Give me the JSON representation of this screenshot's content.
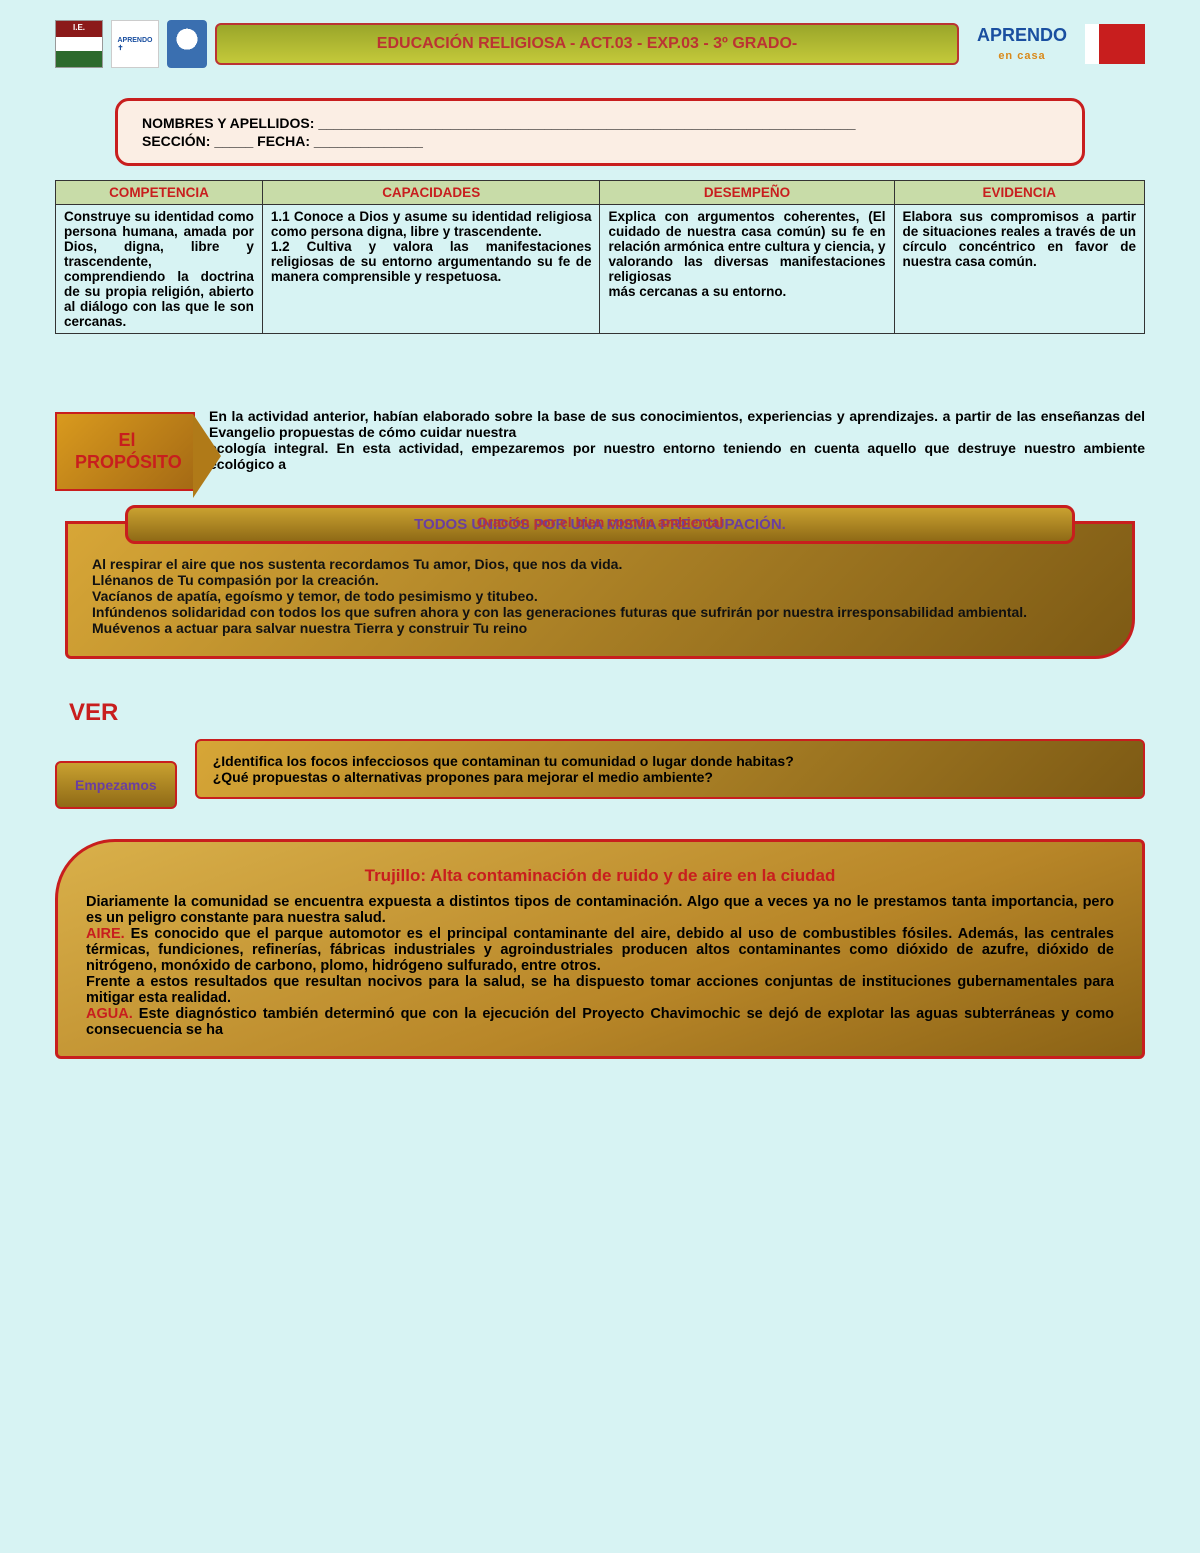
{
  "header": {
    "title": "EDUCACIÓN RELIGIOSA - ACT.03 - EXP.03 - 3º GRADO-",
    "aprendo_big": "APRENDO",
    "aprendo_sub": "en casa"
  },
  "name_box": {
    "line1": "NOMBRES Y APELLIDOS: _____________________________________________________________________",
    "line2": "SECCIÓN: _____        FECHA: ______________"
  },
  "table": {
    "headers": [
      "COMPETENCIA",
      "CAPACIDADES",
      "DESEMPEÑO",
      "EVIDENCIA"
    ],
    "row": {
      "competencia": "Construye su identidad como persona humana, amada por Dios, digna, libre y trascendente, comprendiendo la doctrina de su propia religión, abierto al diálogo con las que le son cercanas.",
      "capacidades": "1.1 Conoce a Dios y asume su identidad religiosa como persona digna, libre y trascendente.\n1.2 Cultiva y valora las manifestaciones religiosas de su entorno argumentando su fe de manera comprensible y respetuosa.",
      "desempeno": "Explica con argumentos coherentes, (El cuidado de nuestra casa común) su fe en relación armónica entre cultura y ciencia, y valorando las diversas manifestaciones religiosas\nmás cercanas a su entorno.",
      "evidencia": "Elabora sus compromisos a partir de situaciones reales a través de un círculo concéntrico en favor de nuestra casa común."
    },
    "col_widths": [
      "19%",
      "31%",
      "27%",
      "23%"
    ]
  },
  "proposito": {
    "label": "El PROPÓSITO",
    "text": "En la actividad anterior, habían elaborado sobre la base de sus conocimientos, experiencias y aprendizajes. a partir de las enseñanzas del Evangelio propuestas de cómo cuidar nuestra\necología integral. En esta actividad, empezaremos por nuestro entorno teniendo en cuenta aquello que destruye nuestro ambiente ecológico a"
  },
  "prayer": {
    "title_main": "TODOS UNIDOS POR UNA MISMA PREOCUPACIÓN.",
    "title_over": "Oración por el bien común ambiental",
    "body": "Al respirar el aire que nos sustenta recordamos Tu amor, Dios, que nos da vida.\nLlénanos de Tu compasión por la creación.\nVacíanos de apatía, egoísmo y temor, de todo pesimismo y titubeo.\nInfúndenos solidaridad con todos los que sufren ahora y con las generaciones futuras que sufrirán por nuestra irresponsabilidad ambiental.\nMuévenos a actuar para salvar nuestra Tierra y construir Tu reino"
  },
  "ver": {
    "heading": "VER",
    "empezamos": "Empezamos",
    "body": "¿Identifica los focos infecciosos que contaminan tu comunidad o lugar donde habitas?\n¿Qué propuestas o alternativas propones para mejorar el medio ambiente?"
  },
  "article": {
    "title": "Trujillo: Alta contaminación de ruido y de aire en la ciudad",
    "p1": "Diariamente la comunidad se encuentra expuesta a distintos tipos de contaminación. Algo que a veces ya no le prestamos tanta importancia, pero es un peligro constante para nuestra salud.",
    "aire_kw": "AIRE.",
    "aire": " Es conocido que el parque automotor es el principal contaminante del aire, debido al uso de combustibles fósiles. Además, las centrales térmicas, fundiciones, refinerías, fábricas industriales y agroindustriales producen altos contaminantes como dióxido de azufre, dióxido de nitrógeno, monóxido de carbono, plomo, hidrógeno sulfurado, entre otros.",
    "p2": "Frente a estos resultados que resultan nocivos para la salud, se ha dispuesto tomar acciones conjuntas de instituciones gubernamentales para mitigar esta realidad.",
    "agua_kw": "AGUA.",
    "agua": " Este diagnóstico también determinó que con la ejecución del Proyecto Chavimochic se dejó de explotar las aguas subterráneas y como consecuencia se ha"
  },
  "colors": {
    "page_bg": "#d7f3f3",
    "red": "#c81e1e",
    "olive_light": "#c8dca8",
    "gold_grad_a": "#d7a637",
    "gold_grad_b": "#7d5a14",
    "purple": "#6a3fa0"
  }
}
